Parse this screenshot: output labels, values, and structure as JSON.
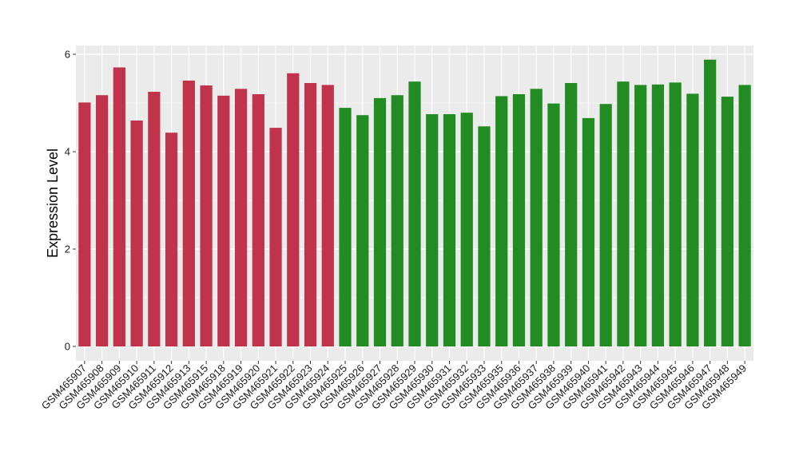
{
  "chart_data": {
    "type": "bar",
    "title": "",
    "xlabel": "",
    "ylabel": "Expression Level",
    "ylim": [
      0,
      6
    ],
    "yticks": [
      0,
      2,
      4,
      6
    ],
    "grid": true,
    "panel_background": "#ebebeb",
    "grid_color": "#ffffff",
    "categories": [
      "GSM465907",
      "GSM465908",
      "GSM465909",
      "GSM465910",
      "GSM465911",
      "GSM465912",
      "GSM465913",
      "GSM465915",
      "GSM465918",
      "GSM465919",
      "GSM465920",
      "GSM465921",
      "GSM465922",
      "GSM465923",
      "GSM465924",
      "GSM465925",
      "GSM465926",
      "GSM465927",
      "GSM465928",
      "GSM465929",
      "GSM465930",
      "GSM465931",
      "GSM465932",
      "GSM465933",
      "GSM465935",
      "GSM465936",
      "GSM465937",
      "GSM465938",
      "GSM465939",
      "GSM465940",
      "GSM465941",
      "GSM465942",
      "GSM465943",
      "GSM465944",
      "GSM465945",
      "GSM465946",
      "GSM465947",
      "GSM465948",
      "GSM465949"
    ],
    "values": [
      5.01,
      5.16,
      5.73,
      4.64,
      5.23,
      4.39,
      5.46,
      5.36,
      5.15,
      5.29,
      5.18,
      4.49,
      5.61,
      5.41,
      5.37,
      4.9,
      4.75,
      5.1,
      5.16,
      5.44,
      4.77,
      4.77,
      4.8,
      4.52,
      5.14,
      5.18,
      5.29,
      4.99,
      5.41,
      4.69,
      4.98,
      5.44,
      5.37,
      5.38,
      5.42,
      5.19,
      5.89,
      5.13,
      5.37
    ],
    "bar_colors": [
      "#c1334a",
      "#c1334a",
      "#c1334a",
      "#c1334a",
      "#c1334a",
      "#c1334a",
      "#c1334a",
      "#c1334a",
      "#c1334a",
      "#c1334a",
      "#c1334a",
      "#c1334a",
      "#c1334a",
      "#c1334a",
      "#c1334a",
      "#228b22",
      "#228b22",
      "#228b22",
      "#228b22",
      "#228b22",
      "#228b22",
      "#228b22",
      "#228b22",
      "#228b22",
      "#228b22",
      "#228b22",
      "#228b22",
      "#228b22",
      "#228b22",
      "#228b22",
      "#228b22",
      "#228b22",
      "#228b22",
      "#228b22",
      "#228b22",
      "#228b22",
      "#228b22",
      "#228b22",
      "#228b22"
    ]
  }
}
